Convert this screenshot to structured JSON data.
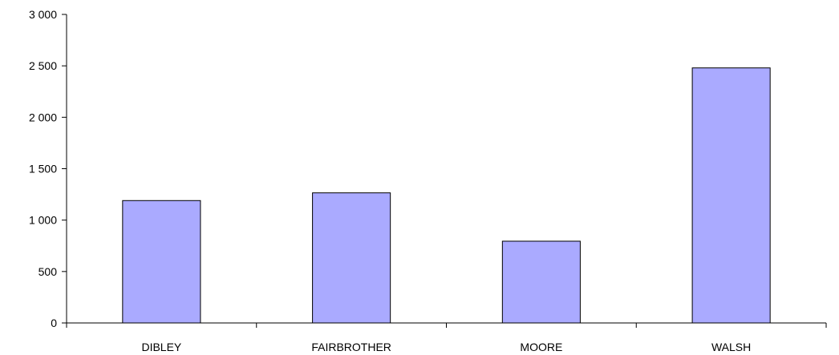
{
  "chart_data": {
    "type": "bar",
    "categories": [
      "DIBLEY",
      "FAIRBROTHER",
      "MOORE",
      "WALSH"
    ],
    "values": [
      1190,
      1265,
      795,
      2480
    ],
    "ylim": [
      0,
      3000
    ],
    "yticks": [
      0,
      500,
      1000,
      1500,
      2000,
      2500,
      3000
    ],
    "ytick_labels": [
      "0",
      "500",
      "1 000",
      "1 500",
      "2 000",
      "2 500",
      "3 000"
    ],
    "grid": false,
    "legend": "none",
    "bar_color": "#aaaaff",
    "title": "",
    "xlabel": "",
    "ylabel": ""
  }
}
